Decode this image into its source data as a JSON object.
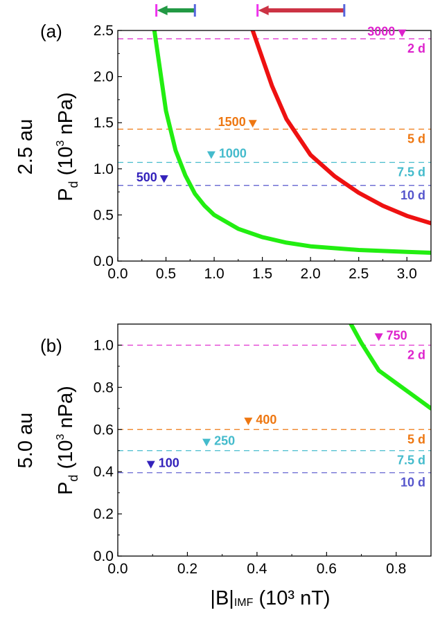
{
  "labels": {
    "panel_a": "(a)",
    "panel_b": "(b)",
    "ylabel_a_side": "2.5 au",
    "ylabel_b_side": "5.0 au",
    "ylabel_main": "P",
    "ylabel_sub": "d",
    "ylabel_paren_open": " (10",
    "ylabel_exp": "3",
    "ylabel_unit": " nPa)",
    "xlabel_main": "|B|",
    "xlabel_sub": "IMF",
    "xlabel_rest": " (10³ nT)"
  },
  "colors": {
    "green": "#22ee11",
    "red": "#ee1111",
    "magenta": "#dd22cc",
    "orange": "#ee7711",
    "cyan": "#44bbcc",
    "blue": "#5555cc",
    "darkblue": "#3322bb",
    "arrow_green": "#229944",
    "arrow_red": "#cc3344",
    "arrow_tick_left": "#ee33ee",
    "arrow_tick_right": "#5566dd"
  },
  "chart_data": [
    {
      "id": "a",
      "type": "line",
      "panel_label": "(a)",
      "distance": "2.5 au",
      "xlabel": "|B|IMF (10³ nT)",
      "ylabel": "Pd (10³ nPa)",
      "xlim": [
        0.0,
        3.25
      ],
      "ylim": [
        0.0,
        2.5
      ],
      "xticks": [
        "0.0",
        "0.5",
        "1.0",
        "1.5",
        "2.0",
        "2.5",
        "3.0"
      ],
      "xtick_values": [
        0.0,
        0.5,
        1.0,
        1.5,
        2.0,
        2.5,
        3.0
      ],
      "yticks": [
        "0.0",
        "0.5",
        "1.0",
        "1.5",
        "2.0",
        "2.5"
      ],
      "ytick_values": [
        0.0,
        0.5,
        1.0,
        1.5,
        2.0,
        2.5
      ],
      "series": [
        {
          "name": "green curve",
          "color": "green",
          "points": [
            [
              0.38,
              2.5
            ],
            [
              0.45,
              1.99
            ],
            [
              0.5,
              1.63
            ],
            [
              0.6,
              1.2
            ],
            [
              0.7,
              0.93
            ],
            [
              0.8,
              0.73
            ],
            [
              0.9,
              0.6
            ],
            [
              1.0,
              0.5
            ],
            [
              1.25,
              0.35
            ],
            [
              1.5,
              0.26
            ],
            [
              1.75,
              0.2
            ],
            [
              2.0,
              0.16
            ],
            [
              2.5,
              0.12
            ],
            [
              3.0,
              0.1
            ],
            [
              3.25,
              0.09
            ]
          ]
        },
        {
          "name": "red curve",
          "color": "red",
          "points": [
            [
              1.4,
              2.5
            ],
            [
              1.5,
              2.2
            ],
            [
              1.6,
              1.9
            ],
            [
              1.75,
              1.54
            ],
            [
              2.0,
              1.15
            ],
            [
              2.25,
              0.92
            ],
            [
              2.5,
              0.74
            ],
            [
              2.75,
              0.6
            ],
            [
              3.0,
              0.49
            ],
            [
              3.25,
              0.41
            ]
          ]
        }
      ],
      "hlines": [
        {
          "y": 2.41,
          "color": "magenta",
          "right_label": "2 d",
          "marker_label": "3000",
          "marker_x": 2.95,
          "marker_y": 2.45,
          "label_side": "left"
        },
        {
          "y": 1.43,
          "color": "orange",
          "right_label": "5 d",
          "marker_label": "1500",
          "marker_x": 1.4,
          "marker_y": 1.47,
          "label_side": "left"
        },
        {
          "y": 1.07,
          "color": "cyan",
          "right_label": "7.5 d",
          "marker_label": "1000",
          "marker_x": 0.97,
          "marker_y": 1.13,
          "label_side": "right"
        },
        {
          "y": 0.82,
          "color": "blue",
          "right_label": "10 d",
          "marker_label": "500",
          "marker_x": 0.48,
          "marker_y": 0.87,
          "label_side": "left"
        }
      ],
      "range_arrows": [
        {
          "from": 0.8,
          "to": 0.4,
          "color": "arrow_green"
        },
        {
          "from": 2.35,
          "to": 1.45,
          "color": "arrow_red"
        }
      ]
    },
    {
      "id": "b",
      "type": "line",
      "panel_label": "(b)",
      "distance": "5.0 au",
      "xlabel": "|B|IMF (10³ nT)",
      "ylabel": "Pd (10³ nPa)",
      "xlim": [
        0.0,
        0.9
      ],
      "ylim": [
        0.0,
        1.1
      ],
      "xticks": [
        "0.0",
        "0.2",
        "0.4",
        "0.6",
        "0.8"
      ],
      "xtick_values": [
        0.0,
        0.2,
        0.4,
        0.6,
        0.8
      ],
      "yticks": [
        "0.0",
        "0.2",
        "0.4",
        "0.6",
        "0.8",
        "1.0"
      ],
      "ytick_values": [
        0.0,
        0.2,
        0.4,
        0.6,
        0.8,
        1.0
      ],
      "series": [
        {
          "name": "green curve",
          "color": "green",
          "points": [
            [
              0.67,
              1.1
            ],
            [
              0.7,
              1.01
            ],
            [
              0.75,
              0.88
            ],
            [
              0.8,
              0.82
            ],
            [
              0.85,
              0.76
            ],
            [
              0.9,
              0.7
            ]
          ]
        }
      ],
      "hlines": [
        {
          "y": 1.0,
          "color": "magenta",
          "right_label": "2 d",
          "marker_label": "750",
          "marker_x": 0.75,
          "marker_y": 1.03,
          "label_side": "right"
        },
        {
          "y": 0.6,
          "color": "orange",
          "right_label": "5 d",
          "marker_label": "400",
          "marker_x": 0.375,
          "marker_y": 0.63,
          "label_side": "right"
        },
        {
          "y": 0.5,
          "color": "cyan",
          "right_label": "7.5 d",
          "marker_label": "250",
          "marker_x": 0.255,
          "marker_y": 0.53,
          "label_side": "right"
        },
        {
          "y": 0.395,
          "color": "blue",
          "right_label": "10 d",
          "marker_label": "100",
          "marker_x": 0.095,
          "marker_y": 0.425,
          "label_side": "right"
        }
      ],
      "range_arrows": []
    }
  ]
}
